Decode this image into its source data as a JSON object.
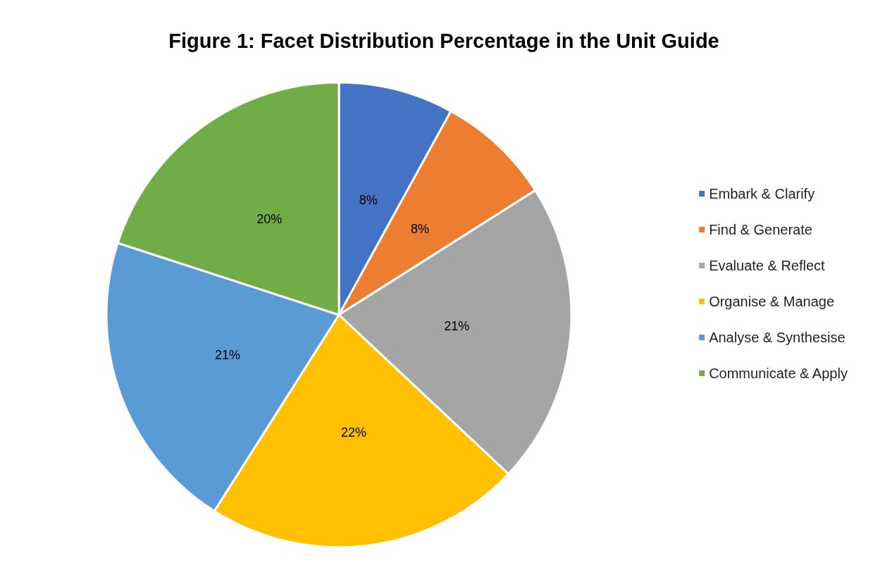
{
  "chart_data": {
    "type": "pie",
    "title": "Figure 1: Facet Distribution Percentage in the Unit Guide",
    "categories": [
      "Embark & Clarify",
      "Find & Generate",
      "Evaluate & Reflect",
      "Organise & Manage",
      "Analyse & Synthesise",
      "Communicate & Apply"
    ],
    "values": [
      8,
      8,
      21,
      22,
      21,
      20
    ],
    "colors": [
      "#4472c4",
      "#ed7d31",
      "#a5a5a5",
      "#ffc000",
      "#5b9bd5",
      "#70ad47"
    ],
    "value_labels": [
      "8%",
      "8%",
      "21%",
      "22%",
      "21%",
      "20%"
    ],
    "legend": "right"
  }
}
